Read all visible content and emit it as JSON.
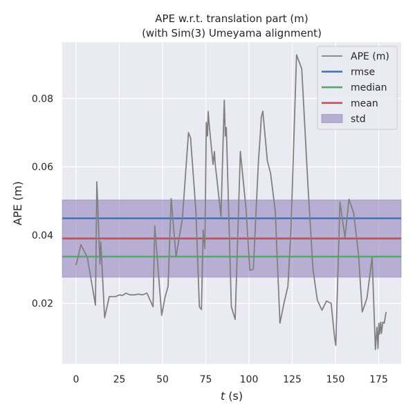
{
  "chart_data": {
    "type": "line",
    "title_line1": "APE w.r.t. translation part (m)",
    "title_line2": "(with Sim(3) Umeyama alignment)",
    "xlabel_var": "t",
    "xlabel_unit": " (s)",
    "ylabel": "APE (m)",
    "xlim": [
      -8,
      188
    ],
    "ylim": [
      0.0023,
      0.0965
    ],
    "xticks": [
      0,
      25,
      50,
      75,
      100,
      125,
      150,
      175
    ],
    "yticks": [
      0.02,
      0.04,
      0.06,
      0.08
    ],
    "grid": true,
    "legend_position": "top-right",
    "colors": {
      "background": "#eaeaf2",
      "grid": "#ffffff",
      "ape": "#808080",
      "rmse": "#4c72b0",
      "median": "#55a868",
      "mean": "#c44e52",
      "std": "#8172b3"
    },
    "stats": {
      "rmse": 0.0449,
      "median": 0.0337,
      "mean": 0.039,
      "std_low": 0.0277,
      "std_high": 0.0503
    },
    "legend": [
      {
        "label": "APE (m)",
        "kind": "line",
        "color": "#808080"
      },
      {
        "label": "rmse",
        "kind": "line",
        "color": "#4c72b0"
      },
      {
        "label": "median",
        "kind": "line",
        "color": "#55a868"
      },
      {
        "label": "mean",
        "kind": "line",
        "color": "#c44e52"
      },
      {
        "label": "std",
        "kind": "patch",
        "color": "#8172b3"
      }
    ],
    "series": [
      {
        "name": "APE (m)",
        "x": [
          0.0,
          2.8,
          6.5,
          11.2,
          12.0,
          13.8,
          14.3,
          15.0,
          16.5,
          19.2,
          22.8,
          25.2,
          26.8,
          28.8,
          31.2,
          33.8,
          36.0,
          38.5,
          41.0,
          44.5,
          45.5,
          47.0,
          49.5,
          51.3,
          53.2,
          55.0,
          57.8,
          61.5,
          65.0,
          66.2,
          69.3,
          71.3,
          72.5,
          73.5,
          74.5,
          75.3,
          76.0,
          76.4,
          77.0,
          79.2,
          80.0,
          80.5,
          81.2,
          83.8,
          85.7,
          86.3,
          86.9,
          87.8,
          89.8,
          92.0,
          95.0,
          98.3,
          100.5,
          102.5,
          105.5,
          106.6,
          107.1,
          108.0,
          110.6,
          112.5,
          115.2,
          117.9,
          120.2,
          122.5,
          124.3,
          127.5,
          130.5,
          134.2,
          137.0,
          139.5,
          142.2,
          144.8,
          147.5,
          149.5,
          150.2,
          152.6,
          155.5,
          157.8,
          160.5,
          163.3,
          165.5,
          168.2,
          171.2,
          173.1,
          174.0,
          174.6,
          175.1,
          175.5,
          176.2,
          176.6,
          177.4,
          178.2,
          179.3
        ],
        "y": [
          0.0312,
          0.0372,
          0.0335,
          0.0195,
          0.0556,
          0.0315,
          0.038,
          0.031,
          0.0158,
          0.022,
          0.022,
          0.0225,
          0.0223,
          0.023,
          0.0225,
          0.0225,
          0.0227,
          0.0225,
          0.023,
          0.019,
          0.0427,
          0.033,
          0.0165,
          0.0215,
          0.025,
          0.0507,
          0.0336,
          0.045,
          0.07,
          0.0685,
          0.047,
          0.019,
          0.0182,
          0.0415,
          0.036,
          0.073,
          0.069,
          0.0762,
          0.0722,
          0.0607,
          0.0645,
          0.0605,
          0.0575,
          0.0455,
          0.0795,
          0.069,
          0.0715,
          0.055,
          0.019,
          0.0153,
          0.0645,
          0.0475,
          0.0297,
          0.03,
          0.062,
          0.07,
          0.0745,
          0.0763,
          0.0618,
          0.058,
          0.047,
          0.0142,
          0.02,
          0.025,
          0.042,
          0.0928,
          0.0887,
          0.0535,
          0.03,
          0.021,
          0.018,
          0.0207,
          0.02,
          0.01,
          0.0077,
          0.0497,
          0.0393,
          0.0505,
          0.0465,
          0.0345,
          0.0175,
          0.0215,
          0.0335,
          0.0065,
          0.013,
          0.0068,
          0.0142,
          0.011,
          0.0145,
          0.0112,
          0.0145,
          0.0142,
          0.0175
        ]
      }
    ]
  }
}
